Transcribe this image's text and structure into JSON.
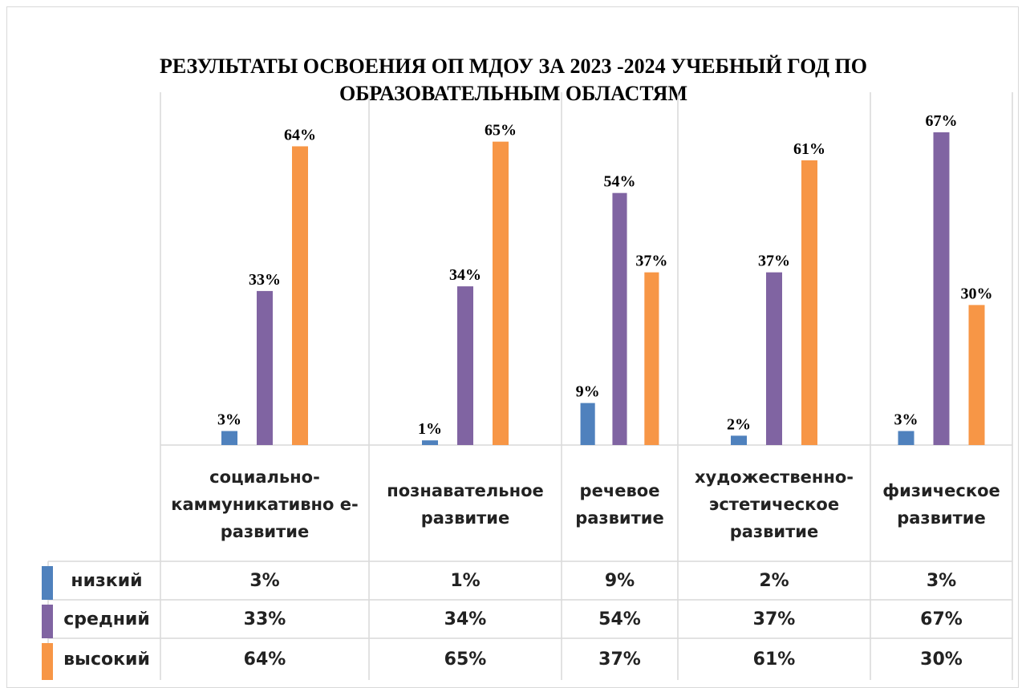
{
  "chart_data": {
    "type": "bar",
    "title": "РЕЗУЛЬТАТЫ ОСВОЕНИЯ ОП МДОУ ЗА 2023 -2024 УЧЕБНЫЙ ГОД ПО ОБРАЗОВАТЕЛЬНЫМ ОБЛАСТЯМ",
    "categories": [
      "социально-каммуникативно е- развитие",
      "познавательное развитие",
      "речевое развитие",
      "художественно-эстетическое развитие",
      "физическое развитие"
    ],
    "series": [
      {
        "name": "низкий",
        "color": "#4f81bd",
        "values": [
          3,
          1,
          9,
          2,
          3
        ],
        "value_labels": [
          "3%",
          "1%",
          "9%",
          "2%",
          "3%"
        ]
      },
      {
        "name": "средний",
        "color": "#8064a2",
        "values": [
          33,
          34,
          54,
          37,
          67
        ],
        "value_labels": [
          "33%",
          "34%",
          "54%",
          "37%",
          "67%"
        ]
      },
      {
        "name": "высокий",
        "color": "#f79646",
        "values": [
          64,
          65,
          37,
          61,
          30
        ],
        "value_labels": [
          "64%",
          "65%",
          "37%",
          "61%",
          "30%"
        ]
      }
    ]
  }
}
